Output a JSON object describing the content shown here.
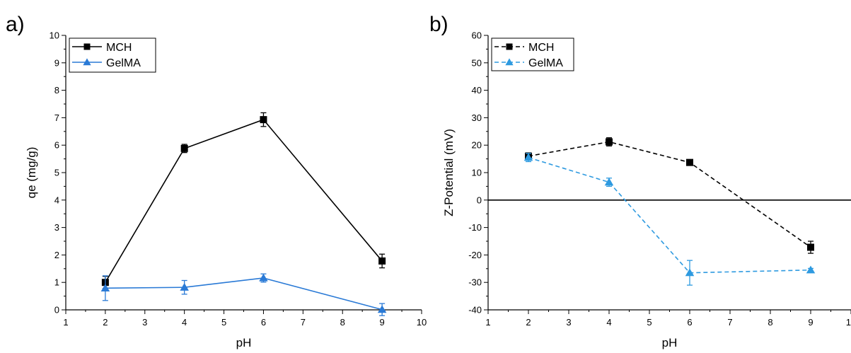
{
  "chart_data": [
    {
      "panel_label": "a)",
      "type": "line",
      "xlabel": "pH",
      "ylabel": "qe (mg/g)",
      "xlim": [
        1,
        10
      ],
      "ylim": [
        0,
        10
      ],
      "x_ticks": [
        1,
        2,
        3,
        4,
        5,
        6,
        7,
        8,
        9,
        10
      ],
      "y_ticks": [
        0,
        1,
        2,
        3,
        4,
        5,
        6,
        7,
        8,
        9,
        10
      ],
      "x_tick_labels": [
        "1",
        "2",
        "3",
        "4",
        "5",
        "6",
        "7",
        "8",
        "9",
        "10"
      ],
      "y_tick_labels": [
        "0",
        "1",
        "2",
        "3",
        "4",
        "5",
        "6",
        "7",
        "8",
        "9",
        "10"
      ],
      "legend": "top-left",
      "grid": false,
      "x": [
        2,
        4,
        6,
        9
      ],
      "series": [
        {
          "name": "MCH",
          "color": "#000000",
          "marker": "square",
          "dash": "solid",
          "values": [
            1.0,
            5.88,
            6.93,
            1.78
          ],
          "errors": [
            0.22,
            0.15,
            0.25,
            0.25
          ]
        },
        {
          "name": "GelMA",
          "color": "#2a7ad6",
          "marker": "triangle",
          "dash": "solid",
          "values": [
            0.79,
            0.82,
            1.16,
            0.01
          ],
          "errors": [
            0.45,
            0.25,
            0.15,
            0.22
          ]
        }
      ]
    },
    {
      "panel_label": "b)",
      "type": "line",
      "xlabel": "pH",
      "ylabel": "Z-Potential (mV)",
      "xlim": [
        1,
        10
      ],
      "ylim": [
        -40,
        60
      ],
      "x_ticks": [
        1,
        2,
        3,
        4,
        5,
        6,
        7,
        8,
        9,
        10
      ],
      "y_ticks": [
        -40,
        -30,
        -20,
        -10,
        0,
        10,
        20,
        30,
        40,
        50,
        60
      ],
      "x_tick_labels": [
        "1",
        "2",
        "3",
        "4",
        "5",
        "6",
        "7",
        "8",
        "9",
        "10"
      ],
      "y_tick_labels": [
        "-40",
        "-30",
        "-20",
        "-10",
        "0",
        "10",
        "20",
        "30",
        "40",
        "50",
        "60"
      ],
      "legend": "top-left",
      "grid": false,
      "reference_line_y": 0,
      "x": [
        2,
        4,
        6,
        9
      ],
      "series": [
        {
          "name": "MCH",
          "color": "#000000",
          "marker": "square",
          "dash": "dashed",
          "values": [
            16.0,
            21.2,
            13.7,
            -17.2
          ],
          "errors": [
            1.2,
            1.5,
            0.6,
            2.2
          ]
        },
        {
          "name": "GelMA",
          "color": "#2e9ae0",
          "marker": "triangle",
          "dash": "dashed",
          "values": [
            15.5,
            6.5,
            -26.5,
            -25.5
          ],
          "errors": [
            1.5,
            1.5,
            4.5,
            0.6
          ]
        }
      ]
    }
  ]
}
